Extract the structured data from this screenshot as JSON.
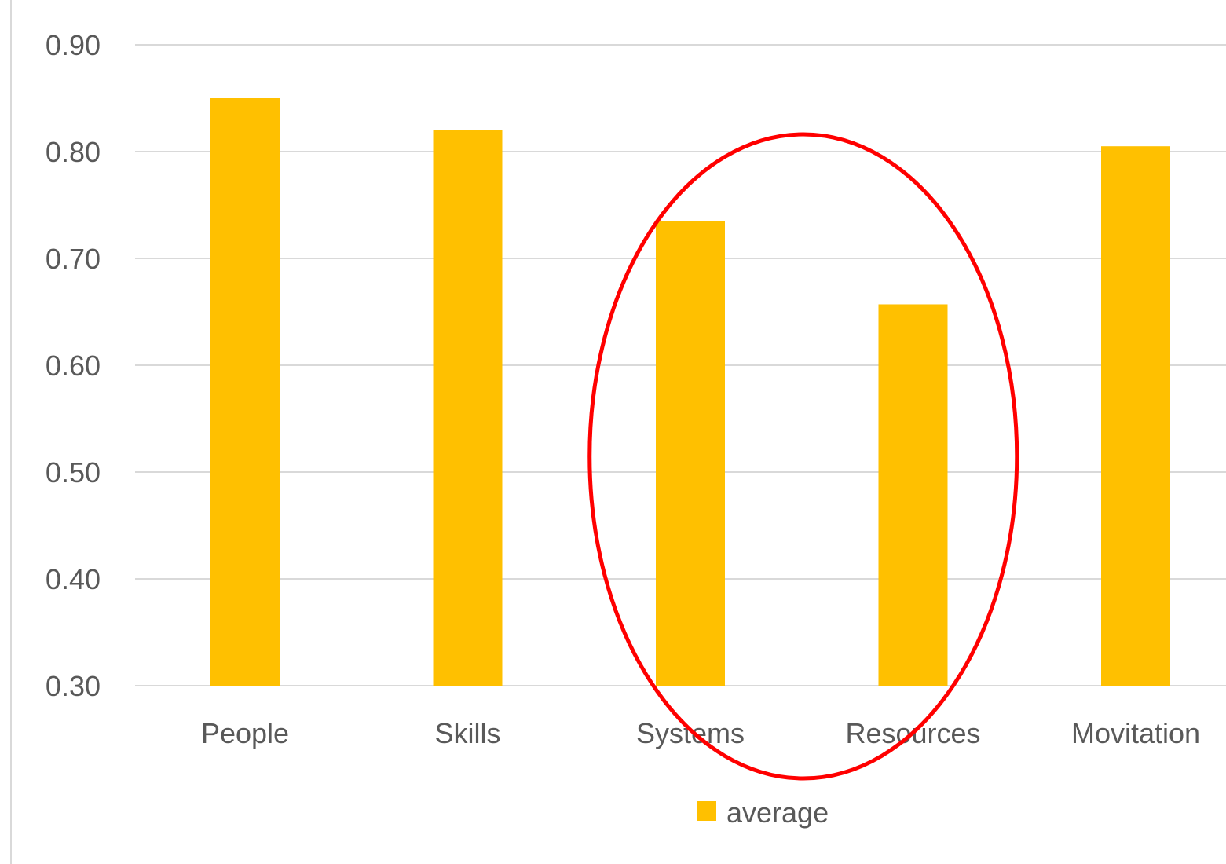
{
  "chart_data": {
    "type": "bar",
    "categories": [
      "People",
      "Skills",
      "Systems",
      "Resources",
      "Movitation"
    ],
    "series": [
      {
        "name": "average",
        "values": [
          0.85,
          0.82,
          0.735,
          0.657,
          0.805
        ],
        "color": "#FFC000"
      }
    ],
    "ylim": [
      0.3,
      0.9
    ],
    "yticks": [
      "0.30",
      "0.40",
      "0.50",
      "0.60",
      "0.70",
      "0.80",
      "0.90"
    ],
    "grid": true,
    "legend": "bottom",
    "annotations": [
      {
        "type": "ellipse",
        "description": "highlight",
        "covers_categories": [
          "Systems",
          "Resources"
        ],
        "color": "#FF0000"
      }
    ],
    "colors": {
      "grid": "#D9D9D9",
      "text": "#595959",
      "highlight": "#FF0000"
    }
  }
}
